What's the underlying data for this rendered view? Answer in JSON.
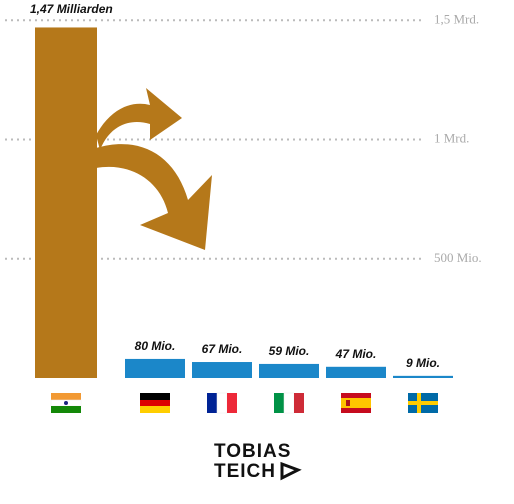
{
  "chart_data": {
    "type": "bar",
    "categories": [
      null,
      null,
      null,
      null,
      null,
      null
    ],
    "values": [
      1470,
      80,
      67,
      59,
      47,
      9
    ],
    "value_labels": [
      "1,47 Milliarden",
      "80 Mio.",
      "67 Mio.",
      "59 Mio.",
      "47 Mio.",
      "9 Mio."
    ],
    "colors": [
      "#b5781a",
      "#1b87c9",
      "#1b87c9",
      "#1b87c9",
      "#1b87c9",
      "#1b87c9"
    ],
    "ylim": [
      0,
      1560
    ],
    "yticks": [
      {
        "value": 500,
        "label": "500 Mio."
      },
      {
        "value": 1000,
        "label": "1 Mrd."
      },
      {
        "value": 1500,
        "label": "1,5 Mrd."
      }
    ],
    "grid": true
  },
  "brand": [
    "TOBIAS",
    "TEICH"
  ]
}
